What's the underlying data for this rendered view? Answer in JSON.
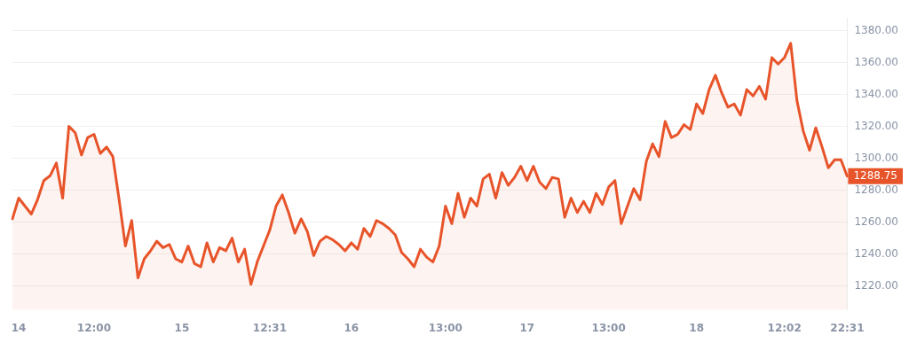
{
  "chart_data": {
    "type": "area",
    "color": "#e8542a",
    "grid": "y",
    "legend": false,
    "marker": "none",
    "line_style": "solid",
    "ylim": [
      1205,
      1388
    ],
    "yticks": [
      {
        "value": 1220,
        "label": "1220.00"
      },
      {
        "value": 1240,
        "label": "1240.00"
      },
      {
        "value": 1260,
        "label": "1260.00"
      },
      {
        "value": 1280,
        "label": "1280.00"
      },
      {
        "value": 1300,
        "label": "1300.00"
      },
      {
        "value": 1320,
        "label": "1320.00"
      },
      {
        "value": 1340,
        "label": "1340.00"
      },
      {
        "value": 1360,
        "label": "1360.00"
      },
      {
        "value": 1380,
        "label": "1380.00"
      }
    ],
    "annotations": [
      {
        "text": "1288.75",
        "x": "22:31",
        "y": 1288.75
      }
    ],
    "categories": [
      null,
      "14",
      null,
      null,
      null,
      null,
      null,
      null,
      null,
      null,
      null,
      null,
      null,
      "12:00",
      null,
      null,
      null,
      null,
      null,
      null,
      null,
      null,
      null,
      null,
      null,
      null,
      null,
      "15",
      null,
      null,
      null,
      null,
      null,
      null,
      null,
      null,
      null,
      null,
      null,
      null,
      null,
      "12:31",
      null,
      null,
      null,
      null,
      null,
      null,
      null,
      null,
      null,
      null,
      null,
      null,
      "16",
      null,
      null,
      null,
      null,
      null,
      null,
      null,
      null,
      null,
      null,
      null,
      null,
      null,
      null,
      "13:00",
      null,
      null,
      null,
      null,
      null,
      null,
      null,
      null,
      null,
      null,
      null,
      null,
      "17",
      null,
      null,
      null,
      null,
      null,
      null,
      null,
      null,
      null,
      null,
      null,
      null,
      "13:00",
      null,
      null,
      null,
      null,
      null,
      null,
      null,
      null,
      null,
      null,
      null,
      null,
      null,
      "18",
      null,
      null,
      null,
      null,
      null,
      null,
      null,
      null,
      null,
      null,
      null,
      null,
      null,
      "12:02",
      null,
      null,
      null,
      null,
      null,
      null,
      null,
      null,
      null,
      "22:31"
    ],
    "values": [
      1262,
      1275,
      1270,
      1265,
      1274,
      1286,
      1289,
      1297,
      1275,
      1320,
      1316,
      1302,
      1313,
      1315,
      1303,
      1307,
      1301,
      1274,
      1245,
      1261,
      1225,
      1237,
      1242,
      1248,
      1244,
      1246,
      1237,
      1235,
      1245,
      1234,
      1232,
      1247,
      1235,
      1244,
      1242,
      1250,
      1235,
      1243,
      1221,
      1235,
      1245,
      1255,
      1270,
      1277,
      1266,
      1253,
      1262,
      1254,
      1239,
      1248,
      1251,
      1249,
      1246,
      1242,
      1247,
      1243,
      1256,
      1251,
      1261,
      1259,
      1256,
      1252,
      1241,
      1237,
      1232,
      1243,
      1238,
      1235,
      1245,
      1270,
      1259,
      1278,
      1263,
      1275,
      1270,
      1287,
      1290,
      1275,
      1291,
      1283,
      1288,
      1295,
      1286,
      1295,
      1285,
      1281,
      1288,
      1287,
      1263,
      1275,
      1266,
      1273,
      1266,
      1278,
      1271,
      1282,
      1286,
      1259,
      1270,
      1281,
      1274,
      1298,
      1309,
      1301,
      1323,
      1313,
      1315,
      1321,
      1318,
      1334,
      1328,
      1343,
      1352,
      1341,
      1332,
      1334,
      1327,
      1343,
      1339,
      1345,
      1337,
      1363,
      1359,
      1363,
      1372,
      1336,
      1317,
      1305,
      1319,
      1307,
      1294,
      1299,
      1299,
      1288.75
    ]
  }
}
